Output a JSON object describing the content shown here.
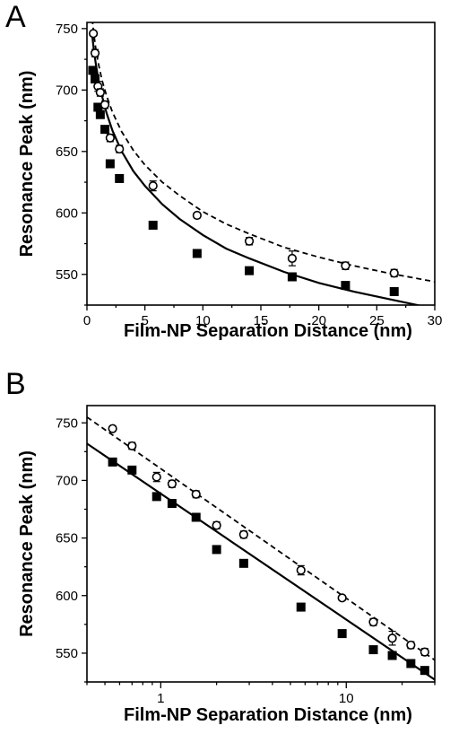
{
  "panels": {
    "a_letter": "A",
    "b_letter": "B"
  },
  "chart_data": [
    {
      "type": "scatter",
      "panel": "A",
      "title": "",
      "xlabel": "Film-NP Separation Distance (nm)",
      "ylabel": "Resonance Peak (nm)",
      "xscale": "linear",
      "xlim": [
        0,
        30
      ],
      "ylim": [
        525,
        755
      ],
      "xticks": [
        0,
        5,
        10,
        15,
        20,
        25,
        30
      ],
      "xtick_labels": [
        "0",
        "5",
        "10",
        "15",
        "20",
        "25",
        "30"
      ],
      "yticks": [
        550,
        600,
        650,
        700,
        750
      ],
      "ytick_labels": [
        "550",
        "600",
        "650",
        "700",
        "750"
      ],
      "grid": false,
      "legend": "none",
      "series": [
        {
          "marker": "filled-square",
          "x": [
            0.5,
            0.7,
            0.95,
            1.15,
            1.55,
            2.0,
            2.8,
            5.7,
            9.5,
            14.0,
            17.7,
            22.3,
            26.5
          ],
          "y": [
            716,
            709,
            686,
            680,
            668,
            640,
            628,
            590,
            567,
            553,
            548,
            541,
            536
          ]
        },
        {
          "marker": "open-circle",
          "x": [
            0.55,
            0.7,
            0.95,
            1.15,
            1.55,
            2.0,
            2.8,
            5.7,
            9.5,
            14.0,
            17.7,
            22.3,
            26.5
          ],
          "y": [
            746,
            730,
            703,
            698,
            688,
            661,
            652,
            622,
            598,
            577,
            563,
            557,
            551
          ],
          "error": [
            2,
            3,
            4,
            3,
            3,
            3,
            3,
            4,
            2,
            3,
            6,
            3,
            3
          ]
        },
        {
          "line": "solid",
          "fit_of": "filled-square",
          "x": [
            0.45,
            0.6,
            0.8,
            1.0,
            1.3,
            1.7,
            2.2,
            3,
            4,
            5,
            6.5,
            8,
            10,
            12,
            14,
            17,
            20,
            23,
            26,
            30
          ],
          "y": [
            745,
            732,
            719,
            708,
            695,
            681,
            667,
            650,
            634,
            622,
            607,
            595,
            582,
            571,
            563,
            552,
            543,
            536,
            530,
            522
          ]
        },
        {
          "line": "dashed",
          "fit_of": "open-circle",
          "x": [
            0.45,
            0.6,
            0.8,
            1.0,
            1.3,
            1.7,
            2.2,
            3,
            4,
            5,
            6.5,
            8,
            10,
            12,
            14,
            17,
            20,
            23,
            26,
            30
          ],
          "y": [
            758,
            745,
            731,
            721,
            708,
            695,
            682,
            666,
            651,
            639,
            625,
            614,
            601,
            591,
            583,
            572,
            564,
            557,
            551,
            544
          ]
        }
      ]
    },
    {
      "type": "scatter",
      "panel": "B",
      "title": "",
      "xlabel": "Film-NP Separation Distance (nm)",
      "ylabel": "Resonance Peak (nm)",
      "xscale": "log",
      "xlim": [
        0.4,
        30
      ],
      "ylim": [
        525,
        765
      ],
      "xticks": [
        1,
        10
      ],
      "xtick_labels": [
        "1",
        "10"
      ],
      "yticks": [
        550,
        600,
        650,
        700,
        750
      ],
      "ytick_labels": [
        "550",
        "600",
        "650",
        "700",
        "750"
      ],
      "grid": false,
      "legend": "none",
      "series": [
        {
          "marker": "filled-square",
          "x": [
            0.55,
            0.7,
            0.95,
            1.15,
            1.55,
            2.0,
            2.8,
            5.7,
            9.5,
            14.0,
            17.7,
            22.3,
            26.5
          ],
          "y": [
            716,
            709,
            686,
            680,
            668,
            640,
            628,
            590,
            567,
            553,
            548,
            541,
            535
          ]
        },
        {
          "marker": "open-circle",
          "x": [
            0.55,
            0.7,
            0.95,
            1.15,
            1.55,
            2.0,
            2.8,
            5.7,
            9.5,
            14.0,
            17.7,
            22.3,
            26.5
          ],
          "y": [
            745,
            730,
            703,
            697,
            688,
            661,
            653,
            622,
            598,
            577,
            563,
            557,
            551
          ],
          "error": [
            2,
            3,
            4,
            3,
            3,
            3,
            3,
            4,
            2,
            3,
            6,
            3,
            3
          ]
        },
        {
          "line": "solid",
          "fit_of": "filled-square",
          "x": [
            0.4,
            30
          ],
          "y": [
            732,
            527
          ]
        },
        {
          "line": "dashed",
          "fit_of": "open-circle",
          "x": [
            0.4,
            30
          ],
          "y": [
            755,
            544
          ]
        }
      ]
    }
  ]
}
